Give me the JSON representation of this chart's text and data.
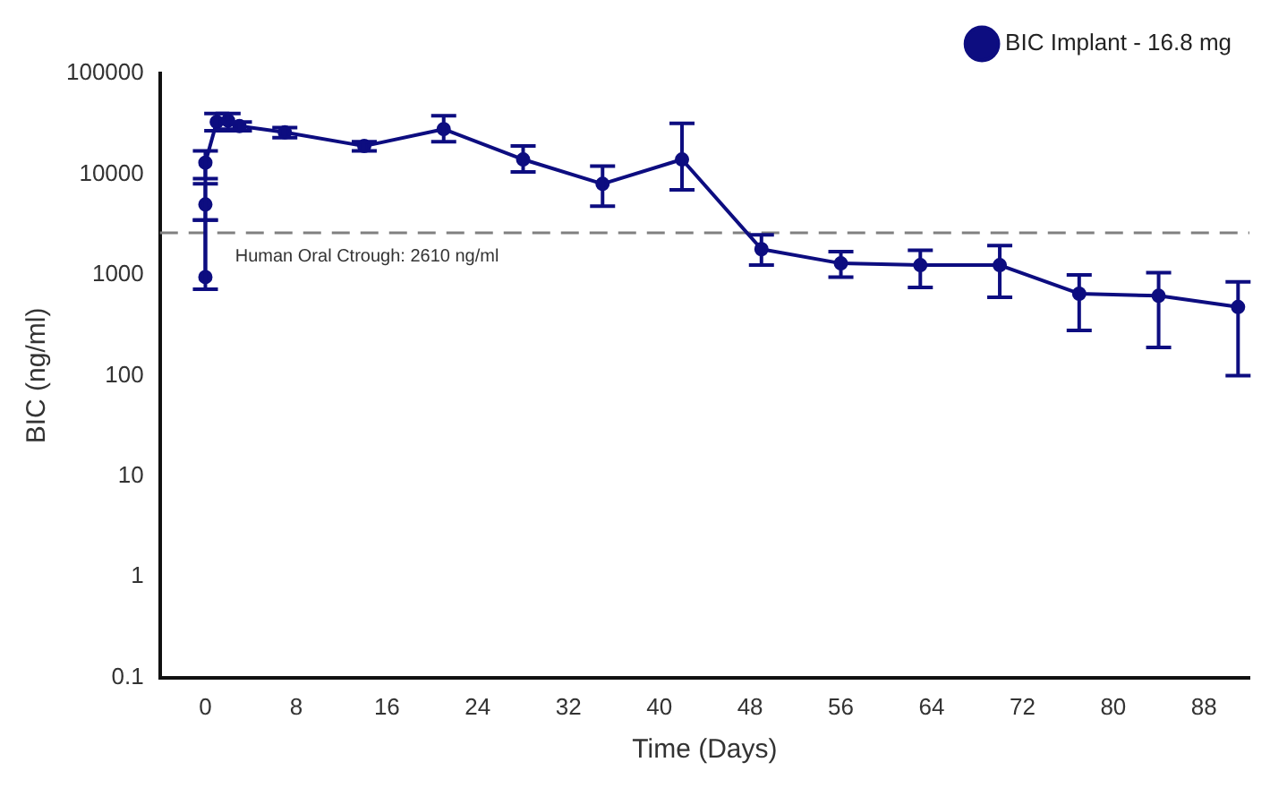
{
  "chart_data": {
    "type": "line",
    "xlabel": "Time (Days)",
    "ylabel": "BIC (ng/ml)",
    "x": [
      0,
      0,
      0,
      1,
      2,
      3,
      7,
      14,
      21,
      28,
      35,
      42,
      49,
      56,
      63,
      70,
      77,
      84,
      91
    ],
    "series": [
      {
        "name": "BIC Implant - 16.8 mg",
        "color": "#0d0d80",
        "values": [
          950,
          5000,
          13000,
          33000,
          34000,
          30000,
          26000,
          19000,
          28000,
          14000,
          8000,
          14000,
          1800,
          1300,
          1250,
          1250,
          650,
          620,
          480
        ],
        "errors": [
          [
            720,
            3500
          ],
          [
            3500,
            8000
          ],
          [
            9000,
            17000
          ],
          [
            27000,
            40000
          ],
          [
            28000,
            40000
          ],
          [
            27000,
            33000
          ],
          [
            23000,
            29000
          ],
          [
            17000,
            21000
          ],
          [
            21000,
            38000
          ],
          [
            10500,
            19000
          ],
          [
            4800,
            12000
          ],
          [
            7000,
            32000
          ],
          [
            1250,
            2500
          ],
          [
            950,
            1700
          ],
          [
            750,
            1750
          ],
          [
            600,
            1950
          ],
          [
            280,
            1000
          ],
          [
            190,
            1050
          ],
          [
            100,
            850
          ]
        ]
      }
    ],
    "log": "y",
    "xlim": [
      -4,
      92
    ],
    "xticks": [
      0,
      8,
      16,
      24,
      32,
      40,
      48,
      56,
      64,
      72,
      80,
      88
    ],
    "ylim": [
      0.1,
      100000
    ],
    "yticks": [
      0.1,
      1,
      10,
      100,
      1000,
      10000,
      100000
    ],
    "grid": false,
    "legend": "top right",
    "marker": "circle",
    "line_style": "solid",
    "ref_lines": [
      {
        "axis": "y",
        "value": 2610,
        "label": "Human Oral Ctrough: 2610 ng/ml",
        "color": "#808080",
        "line_style": "dashed"
      }
    ]
  }
}
